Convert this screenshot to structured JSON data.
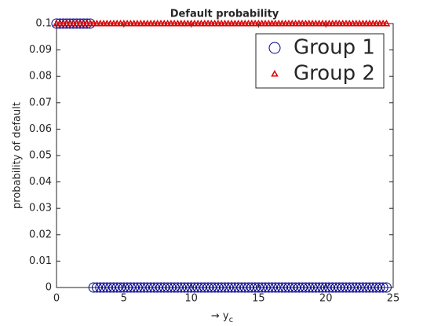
{
  "chart_data": {
    "type": "scatter",
    "title": "Default probability",
    "xlabel": "→ y",
    "xlabel_subscript": "c",
    "ylabel": "probability of default",
    "xlim": [
      0,
      25
    ],
    "xticks": [
      0,
      5,
      10,
      15,
      20,
      25
    ],
    "ylim": [
      0,
      0.1
    ],
    "yticks": [
      0,
      0.01,
      0.02,
      0.03,
      0.04,
      0.05,
      0.06,
      0.07,
      0.08,
      0.09,
      0.1
    ],
    "legend": "northeast",
    "grid": false,
    "x": [
      0,
      0.25,
      0.5,
      0.75,
      1,
      1.25,
      1.5,
      1.75,
      2,
      2.25,
      2.5,
      2.75,
      3,
      3.25,
      3.5,
      3.75,
      4,
      4.25,
      4.5,
      4.75,
      5,
      5.25,
      5.5,
      5.75,
      6,
      6.25,
      6.5,
      6.75,
      7,
      7.25,
      7.5,
      7.75,
      8,
      8.25,
      8.5,
      8.75,
      9,
      9.25,
      9.5,
      9.75,
      10,
      10.25,
      10.5,
      10.75,
      11,
      11.25,
      11.5,
      11.75,
      12,
      12.25,
      12.5,
      12.75,
      13,
      13.25,
      13.5,
      13.75,
      14,
      14.25,
      14.5,
      14.75,
      15,
      15.25,
      15.5,
      15.75,
      16,
      16.25,
      16.5,
      16.75,
      17,
      17.25,
      17.5,
      17.75,
      18,
      18.25,
      18.5,
      18.75,
      19,
      19.25,
      19.5,
      19.75,
      20,
      20.25,
      20.5,
      20.75,
      21,
      21.25,
      21.5,
      21.75,
      22,
      22.25,
      22.5,
      22.75,
      23,
      23.25,
      23.5,
      23.75,
      24,
      24.25,
      24.5
    ],
    "series": [
      {
        "name": "Group 1",
        "color": "#00008b",
        "marker": "circle",
        "values": [
          0.1,
          0.1,
          0.1,
          0.1,
          0.1,
          0.1,
          0.1,
          0.1,
          0.1,
          0.1,
          0.1,
          0,
          0,
          0,
          0,
          0,
          0,
          0,
          0,
          0,
          0,
          0,
          0,
          0,
          0,
          0,
          0,
          0,
          0,
          0,
          0,
          0,
          0,
          0,
          0,
          0,
          0,
          0,
          0,
          0,
          0,
          0,
          0,
          0,
          0,
          0,
          0,
          0,
          0,
          0,
          0,
          0,
          0,
          0,
          0,
          0,
          0,
          0,
          0,
          0,
          0,
          0,
          0,
          0,
          0,
          0,
          0,
          0,
          0,
          0,
          0,
          0,
          0,
          0,
          0,
          0,
          0,
          0,
          0,
          0,
          0,
          0,
          0,
          0,
          0,
          0,
          0,
          0,
          0,
          0,
          0,
          0,
          0,
          0,
          0,
          0,
          0,
          0,
          0
        ]
      },
      {
        "name": "Group 2",
        "color": "#e00000",
        "marker": "triangle",
        "values": [
          0.1,
          0.1,
          0.1,
          0.1,
          0.1,
          0.1,
          0.1,
          0.1,
          0.1,
          0.1,
          0.1,
          0.1,
          0.1,
          0.1,
          0.1,
          0.1,
          0.1,
          0.1,
          0.1,
          0.1,
          0.1,
          0.1,
          0.1,
          0.1,
          0.1,
          0.1,
          0.1,
          0.1,
          0.1,
          0.1,
          0.1,
          0.1,
          0.1,
          0.1,
          0.1,
          0.1,
          0.1,
          0.1,
          0.1,
          0.1,
          0.1,
          0.1,
          0.1,
          0.1,
          0.1,
          0.1,
          0.1,
          0.1,
          0.1,
          0.1,
          0.1,
          0.1,
          0.1,
          0.1,
          0.1,
          0.1,
          0.1,
          0.1,
          0.1,
          0.1,
          0.1,
          0.1,
          0.1,
          0.1,
          0.1,
          0.1,
          0.1,
          0.1,
          0.1,
          0.1,
          0.1,
          0.1,
          0.1,
          0.1,
          0.1,
          0.1,
          0.1,
          0.1,
          0.1,
          0.1,
          0.1,
          0.1,
          0.1,
          0.1,
          0.1,
          0.1,
          0.1,
          0.1,
          0.1,
          0.1,
          0.1,
          0.1,
          0.1,
          0.1,
          0.1,
          0.1,
          0.1,
          0.1,
          0.1
        ]
      }
    ]
  }
}
